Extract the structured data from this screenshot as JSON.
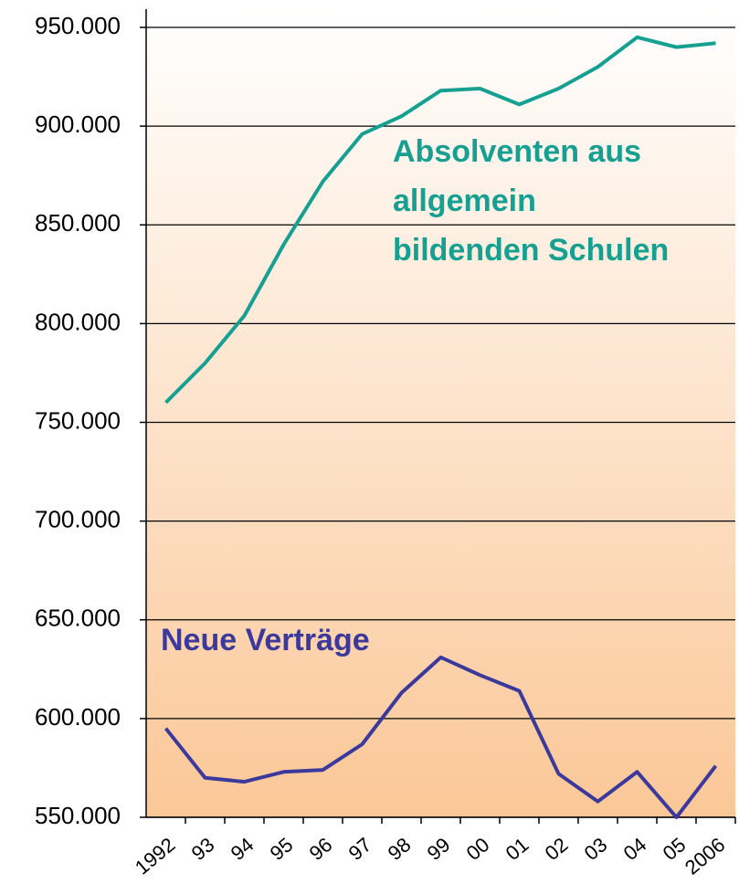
{
  "chart_data": {
    "type": "line",
    "categories": [
      "1992",
      "93",
      "94",
      "95",
      "96",
      "97",
      "98",
      "99",
      "00",
      "01",
      "02",
      "03",
      "04",
      "05",
      "2006"
    ],
    "series": [
      {
        "color": "#16a092",
        "values": [
          760000,
          780000,
          804000,
          840000,
          872000,
          896000,
          905000,
          918000,
          919000,
          911000,
          919000,
          930000,
          945000,
          940000,
          942000
        ]
      },
      {
        "color": "#3b3a9c",
        "values": [
          595000,
          570000,
          568000,
          573000,
          574000,
          587000,
          613000,
          631000,
          622000,
          614000,
          572000,
          558000,
          573000,
          550000,
          576000
        ]
      }
    ],
    "annotations": [
      {
        "lines": [
          "Absolventen aus",
          "allgemein",
          "bildenden Schulen"
        ],
        "color": "#16a092"
      },
      {
        "lines": [
          "Neue Verträge"
        ],
        "color": "#3b3a9c"
      }
    ],
    "ylim": [
      550000,
      950000
    ],
    "yticks": [
      {
        "value": 550000,
        "label": "550.000"
      },
      {
        "value": 600000,
        "label": "600.000"
      },
      {
        "value": 650000,
        "label": "650.000"
      },
      {
        "value": 700000,
        "label": "700.000"
      },
      {
        "value": 750000,
        "label": "750.000"
      },
      {
        "value": 800000,
        "label": "800.000"
      },
      {
        "value": 850000,
        "label": "850.000"
      },
      {
        "value": 900000,
        "label": "900.000"
      },
      {
        "value": 950000,
        "label": "950.000"
      }
    ],
    "grid": true
  }
}
